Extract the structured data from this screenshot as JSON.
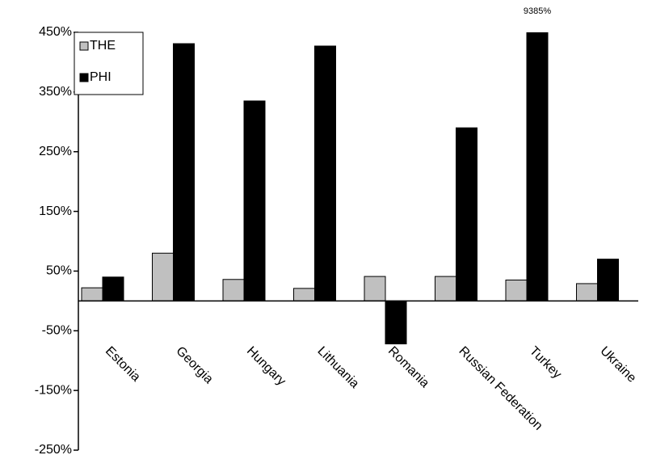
{
  "chart_data": {
    "type": "bar",
    "categories": [
      "Estonia",
      "Georgia",
      "Hungary",
      "Lithuania",
      "Romania",
      "Russian Federation",
      "Turkey",
      "Ukraine"
    ],
    "series": [
      {
        "name": "THE",
        "color": "#c0c0c0",
        "values": [
          22,
          80,
          36,
          21,
          41,
          41,
          35,
          29
        ]
      },
      {
        "name": "PHI",
        "color": "#000000",
        "values": [
          40,
          431,
          335,
          427,
          -72,
          290,
          9385,
          70
        ],
        "value_labels": [
          null,
          null,
          null,
          null,
          null,
          null,
          "9385%",
          null
        ]
      }
    ],
    "ylim": [
      -250,
      450
    ],
    "yticks": [
      {
        "value": -250,
        "label": "-250%"
      },
      {
        "value": -150,
        "label": "-150%"
      },
      {
        "value": -50,
        "label": "-50%"
      },
      {
        "value": 50,
        "label": "50%"
      },
      {
        "value": 150,
        "label": "150%"
      },
      {
        "value": 250,
        "label": "250%"
      },
      {
        "value": 350,
        "label": "350%"
      },
      {
        "value": 450,
        "label": "450%"
      }
    ],
    "grid": false,
    "legend": "upper left"
  }
}
